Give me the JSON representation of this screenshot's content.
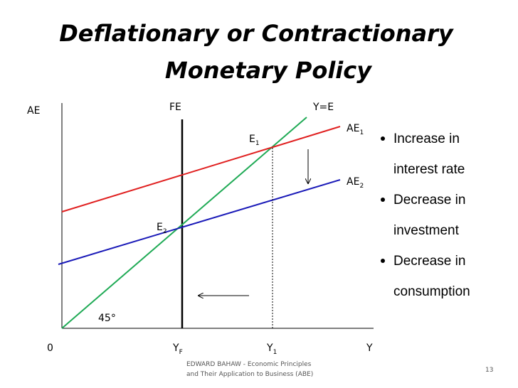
{
  "header": {
    "title_lines": [
      "Deflationary or Contractionary",
      "Monetary Policy"
    ]
  },
  "diagram": {
    "y_axis_label": "AE",
    "x_axis_label": "Y",
    "origin_label": "0",
    "fe_label": "FE",
    "ye_label": "Y=E",
    "angle_label": "45°",
    "ae1_label": {
      "text": "AE",
      "sub": "1"
    },
    "ae2_label": {
      "text": "AE",
      "sub": "2"
    },
    "e1_label": {
      "text": "E",
      "sub": "1"
    },
    "e2_label": {
      "text": "E",
      "sub": "2"
    },
    "yf_label": {
      "text": "Y",
      "sub": "F"
    },
    "y1_label": {
      "text": "Y",
      "sub": "1"
    }
  },
  "bullets": [
    [
      "Increase in",
      "interest rate"
    ],
    [
      "Decrease in",
      "investment"
    ],
    [
      "Decrease in",
      "consumption"
    ]
  ],
  "footer": {
    "credit_lines": [
      "EDWARD BAHAW - Economic Principles",
      "and Their Application to Business (ABE)"
    ],
    "page_number": "13"
  }
}
